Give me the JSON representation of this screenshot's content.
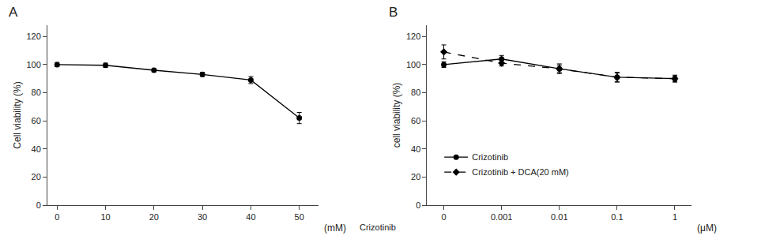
{
  "chart_data": [
    {
      "type": "line",
      "title": "A",
      "x": [
        0,
        10,
        20,
        30,
        40,
        50
      ],
      "values": [
        100,
        99.5,
        96,
        93,
        89,
        62
      ],
      "yerr": [
        1.5,
        1.5,
        1.2,
        1.5,
        2.5,
        4.0
      ],
      "color": "#000000",
      "marker": "circle",
      "line_style": "solid",
      "x_label": "(mM)",
      "y_label": "Cell viability (%)",
      "xlim": [
        -2,
        54
      ],
      "xticks": [
        0,
        10,
        20,
        30,
        40,
        50
      ],
      "ylim": [
        0,
        128
      ],
      "yticks": [
        0,
        20,
        40,
        60,
        80,
        100,
        120
      ],
      "grid": false
    },
    {
      "type": "line",
      "title": "B",
      "categories": [
        "0",
        "0.001",
        "0.01",
        "0.1",
        "1"
      ],
      "series": [
        {
          "name": "Crizotinib",
          "values": [
            100,
            104,
            97,
            91,
            90
          ],
          "yerr": [
            2.0,
            2.5,
            3.5,
            3.5,
            2.0
          ],
          "color": "#000000",
          "marker": "circle",
          "line_style": "solid"
        },
        {
          "name": "Crizotinib + DCA(20 mM)",
          "values": [
            109,
            101,
            97,
            91,
            90
          ],
          "yerr": [
            5.0,
            2.0,
            2.5,
            3.0,
            2.5
          ],
          "color": "#000000",
          "marker": "diamond",
          "line_style": "dashed"
        }
      ],
      "x_label": "(μM)",
      "y_label": "cell viability (%)",
      "annotations": [
        "Crizotinib"
      ],
      "ylim": [
        0,
        128
      ],
      "yticks": [
        0,
        20,
        40,
        60,
        80,
        100,
        120
      ],
      "grid": false,
      "legend": "lower left"
    }
  ]
}
